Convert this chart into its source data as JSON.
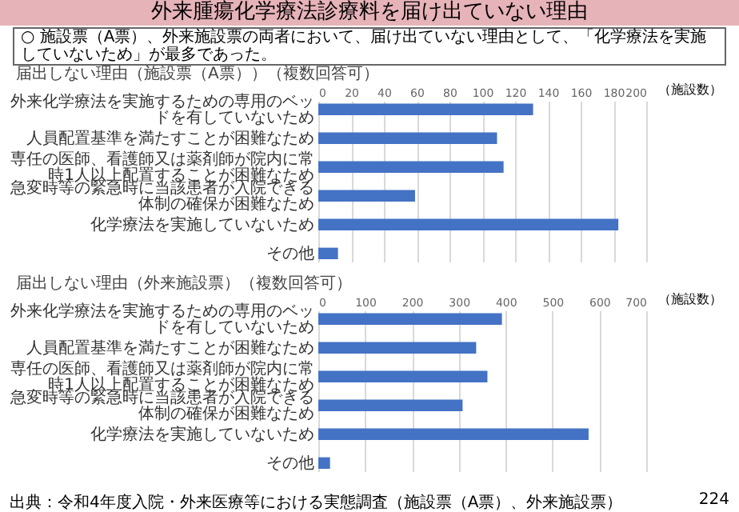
{
  "chart_data": [
    {
      "type": "bar",
      "orientation": "horizontal",
      "title": "外来腫瘍化学療法診療料を届け出ていない理由",
      "subtitle": "届出しない理由（施設票（A票））（複数回答可）",
      "xlabel": "（施設数）",
      "annotations": [
        "○ 施設票（A票）、外来施設票の両者において、届け出ていない理由として、「化学療法を実施していないため」が最多であった。",
        "出典：令和4年度入院・外来医療等における実態調査（施設票（A票）、外来施設票）",
        "224"
      ],
      "categories": [
        "外来化学療法を実施するための専用のベッドを有していないため",
        "人員配置基準を満たすことが困難なため",
        "専任の医師、看護師又は薬剤師が院内に常時1人以上配置することが困難なため",
        "急変時等の緊急時に当該患者が入院できる体制の確保が困難なため",
        "化学療法を実施していないため",
        "その他"
      ],
      "values": [
        131,
        109,
        113,
        59,
        183,
        12
      ],
      "color": "#4472c4",
      "xlim": [
        0,
        200
      ],
      "xticks": [
        0,
        20,
        40,
        60,
        80,
        100,
        120,
        140,
        160,
        180,
        200
      ],
      "grid": "x"
    },
    {
      "type": "bar",
      "orientation": "horizontal",
      "title": "届出しない理由（外来施設票）（複数回答可）",
      "xlabel": "（施設数）",
      "categories": [
        "外来化学療法を実施するための専用のベッドを有していないため",
        "人員配置基準を満たすことが困難なため",
        "専任の医師、看護師又は薬剤師が院内に常時1人以上配置することが困難なため",
        "急変時等の緊急時に当該患者が入院できる体制の確保が困難なため",
        "化学療法を実施していないため",
        "その他"
      ],
      "values": [
        392,
        337,
        361,
        308,
        577,
        25
      ],
      "color": "#4472c4",
      "xlim": [
        0,
        700
      ],
      "xticks": [
        0,
        100,
        200,
        300,
        400,
        500,
        600,
        700
      ],
      "grid": "x"
    }
  ]
}
